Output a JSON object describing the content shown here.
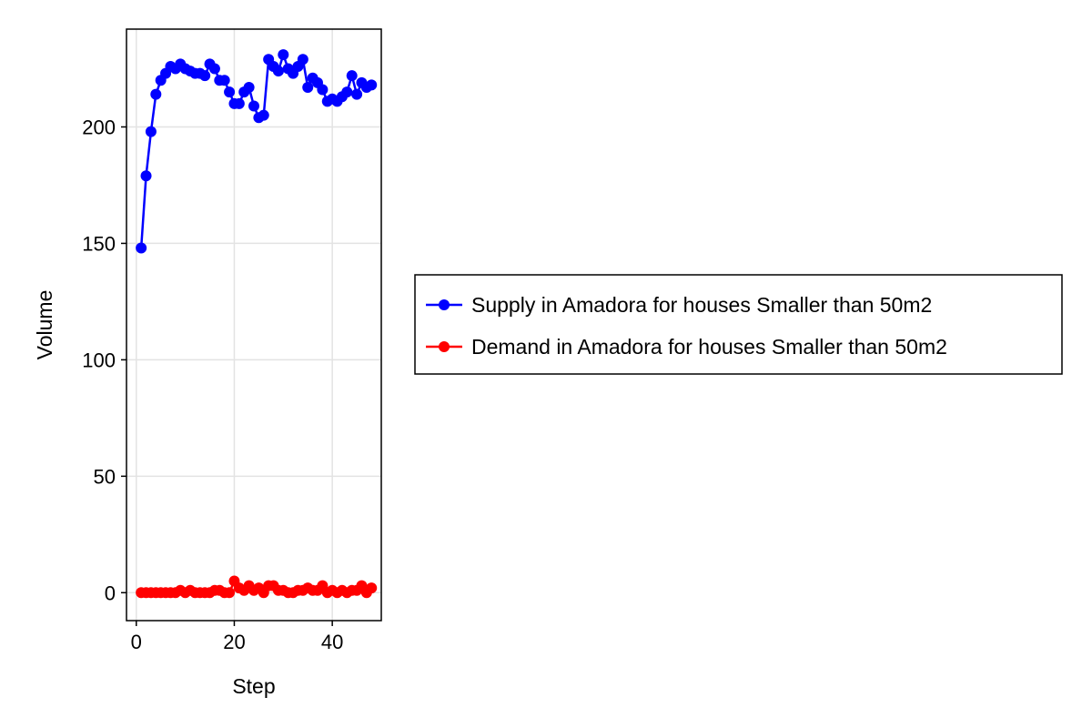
{
  "chart_data": {
    "type": "line",
    "title": "",
    "xlabel": "Step",
    "ylabel": "Volume",
    "xlim": [
      -2,
      50
    ],
    "ylim": [
      -12,
      242
    ],
    "xticks": [
      0,
      20,
      40
    ],
    "xtick_labels": [
      "0",
      "20",
      "40"
    ],
    "yticks": [
      0,
      50,
      100,
      150,
      200
    ],
    "ytick_labels": [
      "0",
      "50",
      "100",
      "150",
      "200"
    ],
    "grid": true,
    "legend_position": "right",
    "series": [
      {
        "name": "Supply in Amadora for houses Smaller than 50m2",
        "color": "#0000ff",
        "marker": "circle",
        "x": [
          1,
          2,
          3,
          4,
          5,
          6,
          7,
          8,
          9,
          10,
          11,
          12,
          13,
          14,
          15,
          16,
          17,
          18,
          19,
          20,
          21,
          22,
          23,
          24,
          25,
          26,
          27,
          28,
          29,
          30,
          31,
          32,
          33,
          34,
          35,
          36,
          37,
          38,
          39,
          40,
          41,
          42,
          43,
          44,
          45,
          46,
          47,
          48
        ],
        "y": [
          148,
          179,
          198,
          214,
          220,
          223,
          226,
          225,
          227,
          225,
          224,
          223,
          223,
          222,
          227,
          225,
          220,
          220,
          215,
          210,
          210,
          215,
          217,
          209,
          204,
          205,
          229,
          226,
          224,
          231,
          225,
          223,
          226,
          229,
          217,
          221,
          219,
          216,
          211,
          212,
          211,
          213,
          215,
          222,
          214,
          219,
          217,
          218
        ]
      },
      {
        "name": "Demand in Amadora for houses Smaller than 50m2",
        "color": "#ff0000",
        "marker": "circle",
        "x": [
          1,
          2,
          3,
          4,
          5,
          6,
          7,
          8,
          9,
          10,
          11,
          12,
          13,
          14,
          15,
          16,
          17,
          18,
          19,
          20,
          21,
          22,
          23,
          24,
          25,
          26,
          27,
          28,
          29,
          30,
          31,
          32,
          33,
          34,
          35,
          36,
          37,
          38,
          39,
          40,
          41,
          42,
          43,
          44,
          45,
          46,
          47,
          48
        ],
        "y": [
          0,
          0,
          0,
          0,
          0,
          0,
          0,
          0,
          1,
          0,
          1,
          0,
          0,
          0,
          0,
          1,
          1,
          0,
          0,
          5,
          2,
          1,
          3,
          1,
          2,
          0,
          3,
          3,
          1,
          1,
          0,
          0,
          1,
          1,
          2,
          1,
          1,
          3,
          0,
          1,
          0,
          1,
          0,
          1,
          1,
          3,
          0,
          2
        ]
      }
    ]
  }
}
